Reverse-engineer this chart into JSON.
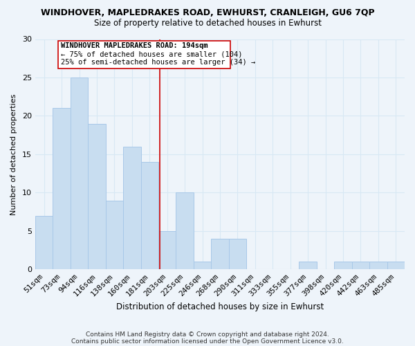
{
  "title": "WINDHOVER, MAPLEDRAKES ROAD, EWHURST, CRANLEIGH, GU6 7QP",
  "subtitle": "Size of property relative to detached houses in Ewhurst",
  "xlabel": "Distribution of detached houses by size in Ewhurst",
  "ylabel": "Number of detached properties",
  "bar_color": "#c8ddf0",
  "bar_edge_color": "#a8c8e8",
  "categories": [
    "51sqm",
    "73sqm",
    "94sqm",
    "116sqm",
    "138sqm",
    "160sqm",
    "181sqm",
    "203sqm",
    "225sqm",
    "246sqm",
    "268sqm",
    "290sqm",
    "311sqm",
    "333sqm",
    "355sqm",
    "377sqm",
    "398sqm",
    "420sqm",
    "442sqm",
    "463sqm",
    "485sqm"
  ],
  "values": [
    7,
    21,
    25,
    19,
    9,
    16,
    14,
    5,
    10,
    1,
    4,
    4,
    0,
    0,
    0,
    1,
    0,
    1,
    1,
    1,
    1
  ],
  "ylim": [
    0,
    30
  ],
  "yticks": [
    0,
    5,
    10,
    15,
    20,
    25,
    30
  ],
  "annotation_line1": "WINDHOVER MAPLEDRAKES ROAD: 194sqm",
  "annotation_line2": "← 75% of detached houses are smaller (104)",
  "annotation_line3": "25% of semi-detached houses are larger (34) →",
  "footnote1": "Contains HM Land Registry data © Crown copyright and database right 2024.",
  "footnote2": "Contains public sector information licensed under the Open Government Licence v3.0.",
  "grid_color": "#d8e8f4",
  "background_color": "#eef4fa",
  "red_line_color": "#cc0000",
  "annotation_box_color": "#cc0000"
}
